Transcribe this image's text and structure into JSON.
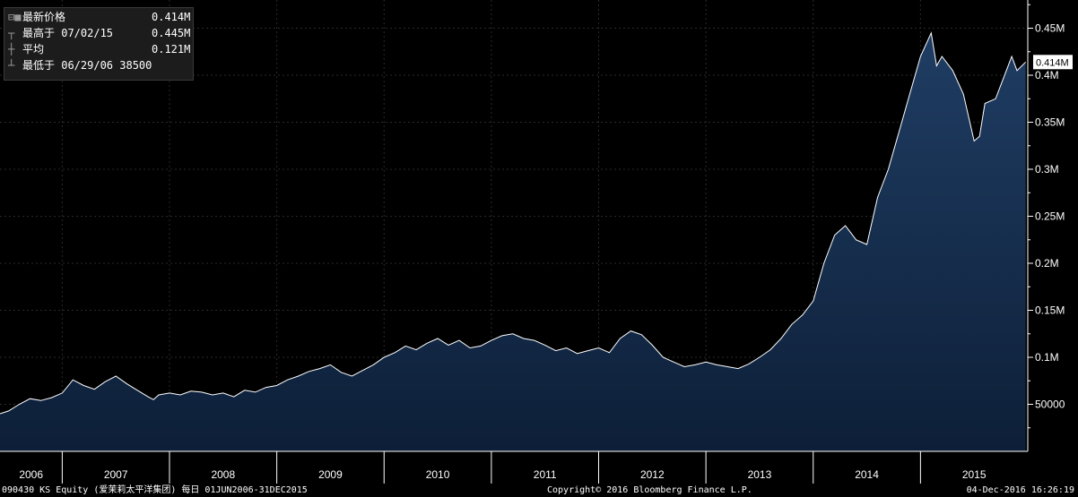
{
  "legend": {
    "rows": [
      {
        "glyph": "⊟■",
        "label": "最新价格",
        "value": "0.414M"
      },
      {
        "glyph": "┬",
        "label": "最高于 07/02/15",
        "value": "0.445M"
      },
      {
        "glyph": "┼",
        "label": "平均",
        "value": "0.121M"
      },
      {
        "glyph": "┴",
        "label": "最低于 06/29/06 38500",
        "value": ""
      }
    ]
  },
  "last_price_label": "0.414M",
  "footer": {
    "left": "090430 KS Equity (爱茉莉太平洋集团) 每日 01JUN2006-31DEC2015",
    "center": "Copyright© 2016 Bloomberg Finance L.P.",
    "right": "04-Dec-2016 16:26:19"
  },
  "colors": {
    "background": "#000000",
    "area_fill_top": "#1e3a5f",
    "area_fill_bottom": "#0f2340",
    "line": "#ffffff",
    "grid": "#2a2a2a",
    "label_box": "#ffffff"
  },
  "chart_data": {
    "type": "area",
    "xlabel": "",
    "ylabel": "",
    "xlim": [
      2006.42,
      2016.0
    ],
    "ylim": [
      0,
      480000
    ],
    "y_ticks": [
      50000,
      100000,
      150000,
      200000,
      250000,
      300000,
      350000,
      400000,
      450000
    ],
    "y_tick_labels": [
      "50000",
      "0.1M",
      "0.15M",
      "0.2M",
      "0.25M",
      "0.3M",
      "0.35M",
      "0.4M",
      "0.45M"
    ],
    "x_tick_labels": [
      "2006",
      "2007",
      "2008",
      "2009",
      "2010",
      "2011",
      "2012",
      "2013",
      "2014",
      "2015"
    ],
    "x_tick_years": [
      2006,
      2007,
      2008,
      2009,
      2010,
      2011,
      2012,
      2013,
      2014,
      2015
    ],
    "grid": true,
    "series": [
      {
        "x": [
          2006.42,
          2006.5,
          2006.6,
          2006.7,
          2006.8,
          2006.9,
          2007.0,
          2007.1,
          2007.2,
          2007.3,
          2007.4,
          2007.5,
          2007.6,
          2007.7,
          2007.8,
          2007.85,
          2007.9,
          2008.0,
          2008.1,
          2008.2,
          2008.3,
          2008.4,
          2008.5,
          2008.6,
          2008.7,
          2008.8,
          2008.9,
          2009.0,
          2009.1,
          2009.2,
          2009.3,
          2009.4,
          2009.5,
          2009.6,
          2009.7,
          2009.8,
          2009.9,
          2010.0,
          2010.1,
          2010.2,
          2010.3,
          2010.4,
          2010.5,
          2010.6,
          2010.7,
          2010.8,
          2010.9,
          2011.0,
          2011.1,
          2011.2,
          2011.3,
          2011.4,
          2011.5,
          2011.6,
          2011.7,
          2011.8,
          2011.9,
          2012.0,
          2012.1,
          2012.2,
          2012.3,
          2012.4,
          2012.5,
          2012.6,
          2012.7,
          2012.8,
          2012.9,
          2013.0,
          2013.1,
          2013.2,
          2013.3,
          2013.4,
          2013.5,
          2013.6,
          2013.7,
          2013.8,
          2013.9,
          2014.0,
          2014.1,
          2014.2,
          2014.3,
          2014.4,
          2014.5,
          2014.6,
          2014.7,
          2014.8,
          2014.9,
          2015.0,
          2015.1,
          2015.15,
          2015.2,
          2015.3,
          2015.4,
          2015.5,
          2015.55,
          2015.6,
          2015.7,
          2015.8,
          2015.85,
          2015.9,
          2015.98
        ],
        "values": [
          40000,
          43000,
          50000,
          56000,
          54000,
          57000,
          62000,
          76000,
          70000,
          66000,
          74000,
          80000,
          72000,
          65000,
          58000,
          55000,
          60000,
          62000,
          60000,
          64000,
          63000,
          60000,
          62000,
          58000,
          65000,
          63000,
          68000,
          70000,
          76000,
          80000,
          85000,
          88000,
          92000,
          84000,
          80000,
          86000,
          92000,
          100000,
          105000,
          112000,
          108000,
          115000,
          120000,
          113000,
          118000,
          110000,
          112000,
          118000,
          123000,
          125000,
          120000,
          118000,
          113000,
          107000,
          110000,
          104000,
          107000,
          110000,
          105000,
          120000,
          128000,
          124000,
          113000,
          100000,
          95000,
          90000,
          92000,
          95000,
          92000,
          90000,
          88000,
          93000,
          100000,
          108000,
          120000,
          135000,
          145000,
          160000,
          200000,
          230000,
          240000,
          225000,
          220000,
          270000,
          300000,
          340000,
          380000,
          420000,
          445000,
          410000,
          420000,
          405000,
          380000,
          330000,
          335000,
          370000,
          375000,
          405000,
          420000,
          405000,
          414000
        ]
      }
    ]
  }
}
